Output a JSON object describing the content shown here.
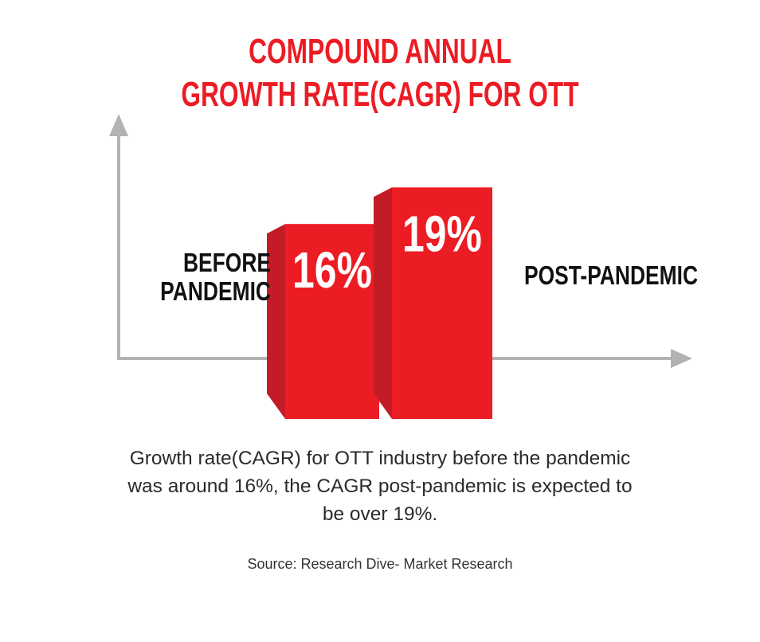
{
  "colors": {
    "accent": "#ec1c24",
    "accent_dark": "#c21d27",
    "axis": "#b3b3b3",
    "text": "#111111"
  },
  "title": {
    "line1": "COMPOUND ANNUAL",
    "line2": "GROWTH RATE(CAGR) FOR OTT"
  },
  "caption": {
    "line1": "Growth rate(CAGR) for OTT industry before the pandemic",
    "line2": "was around 16%, the CAGR post-pandemic is expected to",
    "line3": "be over 19%."
  },
  "source": "Source: Research Dive- Market Research",
  "chart_data": {
    "type": "bar",
    "categories": [
      "BEFORE PANDEMIC",
      "POST-PANDEMIC"
    ],
    "category_lines": [
      [
        "BEFORE",
        "PANDEMIC"
      ],
      [
        "POST-PANDEMIC"
      ]
    ],
    "values": [
      16,
      19
    ],
    "data_labels": [
      "16%",
      "19%"
    ],
    "title": "COMPOUND ANNUAL GROWTH RATE(CAGR) FOR OTT",
    "xlabel": "",
    "ylabel": "",
    "grid": false,
    "legend": "none"
  }
}
